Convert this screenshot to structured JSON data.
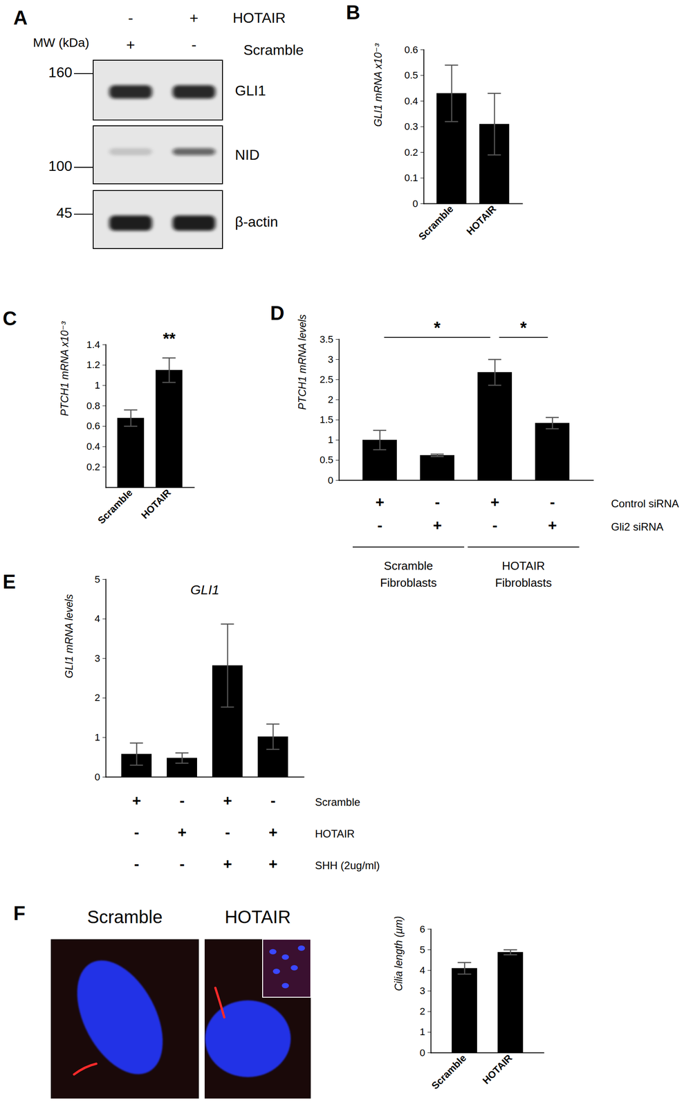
{
  "blot": {
    "panel": "A",
    "lane_conditions": [
      {
        "name": "HOTAIR",
        "values": [
          "-",
          "+"
        ]
      },
      {
        "name": "Scramble",
        "values": [
          "+",
          "-"
        ]
      }
    ],
    "mw_label": "MW (kDa)",
    "mw_markers": [
      160,
      100,
      45
    ],
    "proteins": [
      "GLI1",
      "NID",
      "β-actin"
    ]
  },
  "chart_data": [
    {
      "panel": "B",
      "type": "bar",
      "categories": [
        "Scramble",
        "HOTAIR"
      ],
      "values": [
        0.43,
        0.31
      ],
      "errors": [
        0.11,
        0.12
      ],
      "y_label": "GLI1 mRNA x10⁻³",
      "ylim": [
        0,
        0.6
      ],
      "yticks": [
        0,
        0.1,
        0.2,
        0.3,
        0.4,
        0.5,
        0.6
      ],
      "color": "#000000"
    },
    {
      "panel": "C",
      "type": "bar",
      "categories": [
        "Scramble",
        "HOTAIR"
      ],
      "values": [
        0.68,
        1.15
      ],
      "errors": [
        0.08,
        0.12
      ],
      "y_label": "PTCH1 mRNA x10⁻³",
      "ylim": [
        0,
        1.4
      ],
      "yticks": [
        0.2,
        0.4,
        0.6,
        0.8,
        1,
        1.2,
        1.4
      ],
      "color": "#000000",
      "annotations": [
        {
          "text": "**",
          "category": 1
        }
      ]
    },
    {
      "panel": "D",
      "type": "bar",
      "categories": [
        null,
        null,
        null,
        null
      ],
      "values": [
        1.0,
        0.62,
        2.68,
        1.42
      ],
      "errors": [
        0.24,
        0.03,
        0.32,
        0.14
      ],
      "y_label": "PTCH1 mRNA levels",
      "ylim": [
        0,
        3.5
      ],
      "yticks": [
        0,
        0.5,
        1,
        1.5,
        2,
        2.5,
        3,
        3.5
      ],
      "color": "#000000",
      "conditions": [
        {
          "name": "Control siRNA",
          "values": [
            "+",
            "-",
            "+",
            "-"
          ]
        },
        {
          "name": "Gli2 siRNA",
          "values": [
            "-",
            "+",
            "-",
            "+"
          ]
        }
      ],
      "groups": [
        {
          "label": "Scramble\nFibroblasts",
          "from": 0,
          "to": 1
        },
        {
          "label": "HOTAIR\nFibroblasts",
          "from": 2,
          "to": 3
        }
      ],
      "significance": [
        {
          "text": "*",
          "from": 0,
          "to": 2
        },
        {
          "text": "*",
          "from": 2,
          "to": 3
        }
      ]
    },
    {
      "panel": "E",
      "type": "bar",
      "title": "GLI1",
      "categories": [
        null,
        null,
        null,
        null
      ],
      "values": [
        0.58,
        0.48,
        2.82,
        1.02
      ],
      "errors": [
        0.28,
        0.13,
        1.05,
        0.32
      ],
      "y_label": "GLI1 mRNA levels",
      "ylim": [
        0,
        5
      ],
      "yticks": [
        0,
        1,
        2,
        3,
        4,
        5
      ],
      "color": "#000000",
      "conditions": [
        {
          "name": "Scramble",
          "values": [
            "+",
            "-",
            "+",
            "-"
          ]
        },
        {
          "name": "HOTAIR",
          "values": [
            "-",
            "+",
            "-",
            "+"
          ]
        },
        {
          "name": "SHH (2ug/ml)",
          "values": [
            "-",
            "-",
            "+",
            "+"
          ]
        }
      ]
    },
    {
      "panel": "F",
      "type": "bar",
      "categories": [
        "Scramble",
        "HOTAIR"
      ],
      "values": [
        4.1,
        4.88
      ],
      "errors": [
        0.28,
        0.12
      ],
      "y_label": "Cilia length (µm)",
      "ylim": [
        0,
        6
      ],
      "yticks": [
        0,
        1,
        2,
        3,
        4,
        5,
        6
      ],
      "color": "#000000"
    }
  ],
  "micrograph": {
    "panel": "F",
    "images": [
      "Scramble",
      "HOTAIR"
    ]
  }
}
